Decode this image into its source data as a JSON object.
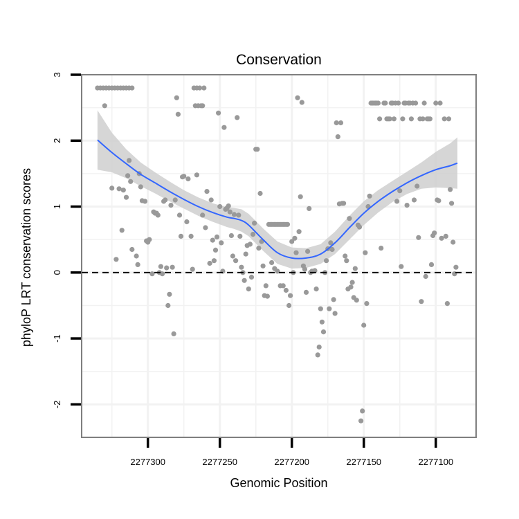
{
  "chart_data": {
    "type": "scatter",
    "title": "Conservation",
    "xlabel": "Genomic Position",
    "ylabel": "phyloP LRT conservation scores",
    "x_reversed": true,
    "xlim": [
      2277346,
      2277072
    ],
    "ylim": [
      -2.5,
      3.0
    ],
    "x_ticks": [
      2277300,
      2277250,
      2277200,
      2277150,
      2277100
    ],
    "x_tick_labels": [
      "2277300",
      "2277250",
      "2277200",
      "2277150",
      "2277100"
    ],
    "y_ticks": [
      3,
      2,
      1,
      0,
      -1,
      -2
    ],
    "y_tick_labels": [
      "3",
      "2",
      "1",
      "0",
      "-1",
      "-2"
    ],
    "grid": true,
    "reference_line": {
      "y": 0,
      "style": "dashed",
      "color": "#000000"
    },
    "colors": {
      "points": "#999999",
      "smooth_line": "#3366ff",
      "ribbon": "#cccccc",
      "grid": "#f2f2f2",
      "panel_border": "#7f7f7f"
    },
    "series": [
      {
        "type": "points",
        "points": [
          [
            2277335,
            2.8
          ],
          [
            2277333,
            2.8
          ],
          [
            2277331,
            2.8
          ],
          [
            2277329,
            2.8
          ],
          [
            2277327,
            2.8
          ],
          [
            2277325,
            2.8
          ],
          [
            2277323,
            2.8
          ],
          [
            2277321,
            2.8
          ],
          [
            2277319,
            2.8
          ],
          [
            2277317,
            2.8
          ],
          [
            2277315,
            2.8
          ],
          [
            2277313,
            2.8
          ],
          [
            2277311,
            2.8
          ],
          [
            2277330,
            2.53
          ],
          [
            2277325,
            1.28
          ],
          [
            2277322,
            0.2
          ],
          [
            2277320,
            1.27
          ],
          [
            2277318,
            0.64
          ],
          [
            2277317,
            1.25
          ],
          [
            2277315,
            1.14
          ],
          [
            2277314,
            1.47
          ],
          [
            2277313,
            1.7
          ],
          [
            2277312,
            1.38
          ],
          [
            2277311,
            0.35
          ],
          [
            2277308,
            0.25
          ],
          [
            2277307,
            0.12
          ],
          [
            2277306,
            1.5
          ],
          [
            2277305,
            1.3
          ],
          [
            2277304,
            1.09
          ],
          [
            2277302,
            1.08
          ],
          [
            2277301,
            0.48
          ],
          [
            2277300,
            0.46
          ],
          [
            2277299,
            0.5
          ],
          [
            2277297,
            -0.02
          ],
          [
            2277296,
            0.92
          ],
          [
            2277295,
            0.9
          ],
          [
            2277294,
            0.9
          ],
          [
            2277293,
            0.87
          ],
          [
            2277292,
            0.0
          ],
          [
            2277291,
            0.09
          ],
          [
            2277290,
            -0.02
          ],
          [
            2277289,
            1.08
          ],
          [
            2277288,
            1.1
          ],
          [
            2277287,
            0.07
          ],
          [
            2277286,
            -0.5
          ],
          [
            2277285,
            -0.33
          ],
          [
            2277284,
            1.02
          ],
          [
            2277283,
            0.08
          ],
          [
            2277282,
            -0.93
          ],
          [
            2277281,
            1.1
          ],
          [
            2277280,
            2.65
          ],
          [
            2277279,
            2.4
          ],
          [
            2277278,
            0.87
          ],
          [
            2277277,
            0.55
          ],
          [
            2277276,
            1.45
          ],
          [
            2277275,
            1.46
          ],
          [
            2277273,
            0.77
          ],
          [
            2277272,
            1.42
          ],
          [
            2277270,
            0.55
          ],
          [
            2277269,
            0.05
          ],
          [
            2277268,
            2.8
          ],
          [
            2277266,
            2.8
          ],
          [
            2277264,
            2.8
          ],
          [
            2277261,
            2.8
          ],
          [
            2277267,
            2.53
          ],
          [
            2277265,
            2.53
          ],
          [
            2277263,
            2.53
          ],
          [
            2277262,
            2.53
          ],
          [
            2277266,
            1.48
          ],
          [
            2277262,
            0.87
          ],
          [
            2277260,
            0.68
          ],
          [
            2277259,
            1.23
          ],
          [
            2277257,
            0.14
          ],
          [
            2277256,
            1.1
          ],
          [
            2277255,
            0.49
          ],
          [
            2277254,
            0.18
          ],
          [
            2277253,
            0.34
          ],
          [
            2277252,
            0.54
          ],
          [
            2277251,
            2.42
          ],
          [
            2277250,
            1.0
          ],
          [
            2277249,
            0.45
          ],
          [
            2277248,
            0.02
          ],
          [
            2277247,
            2.2
          ],
          [
            2277246,
            0.96
          ],
          [
            2277245,
            0.98
          ],
          [
            2277244,
            1.01
          ],
          [
            2277243,
            0.92
          ],
          [
            2277242,
            0.56
          ],
          [
            2277241,
            0.25
          ],
          [
            2277240,
            0.88
          ],
          [
            2277239,
            0.18
          ],
          [
            2277238,
            2.35
          ],
          [
            2277237,
            0.87
          ],
          [
            2277236,
            0.55
          ],
          [
            2277235,
            0.08
          ],
          [
            2277234,
            0.0
          ],
          [
            2277233,
            -0.12
          ],
          [
            2277232,
            0.28
          ],
          [
            2277231,
            0.41
          ],
          [
            2277230,
            -0.25
          ],
          [
            2277229,
            0.43
          ],
          [
            2277228,
            -0.07
          ],
          [
            2277227,
            0.58
          ],
          [
            2277226,
            0.75
          ],
          [
            2277225,
            1.87
          ],
          [
            2277224,
            1.87
          ],
          [
            2277223,
            0.37
          ],
          [
            2277222,
            1.2
          ],
          [
            2277221,
            0.47
          ],
          [
            2277220,
            0.1
          ],
          [
            2277219,
            -0.35
          ],
          [
            2277218,
            -0.2
          ],
          [
            2277217,
            -0.36
          ],
          [
            2277216,
            0.73
          ],
          [
            2277215,
            0.73
          ],
          [
            2277214,
            0.73
          ],
          [
            2277213,
            0.73
          ],
          [
            2277212,
            0.73
          ],
          [
            2277211,
            0.73
          ],
          [
            2277210,
            0.73
          ],
          [
            2277209,
            0.73
          ],
          [
            2277208,
            0.73
          ],
          [
            2277207,
            0.73
          ],
          [
            2277206,
            0.73
          ],
          [
            2277205,
            0.73
          ],
          [
            2277204,
            0.73
          ],
          [
            2277203,
            0.73
          ],
          [
            2277214,
            0.15
          ],
          [
            2277212,
            0.06
          ],
          [
            2277210,
            0.02
          ],
          [
            2277208,
            -0.2
          ],
          [
            2277206,
            -0.2
          ],
          [
            2277204,
            -0.27
          ],
          [
            2277202,
            -0.5
          ],
          [
            2277201,
            -0.35
          ],
          [
            2277200,
            0.47
          ],
          [
            2277199,
            0.0
          ],
          [
            2277198,
            0.52
          ],
          [
            2277197,
            0.3
          ],
          [
            2277196,
            2.65
          ],
          [
            2277195,
            0.62
          ],
          [
            2277194,
            1.15
          ],
          [
            2277193,
            2.58
          ],
          [
            2277192,
            0.1
          ],
          [
            2277191,
            0.05
          ],
          [
            2277190,
            -0.3
          ],
          [
            2277189,
            0.32
          ],
          [
            2277188,
            0.97
          ],
          [
            2277187,
            0.0
          ],
          [
            2277186,
            0.02
          ],
          [
            2277185,
            0.02
          ],
          [
            2277184,
            0.03
          ],
          [
            2277183,
            -0.25
          ],
          [
            2277182,
            -1.25
          ],
          [
            2277181,
            -1.13
          ],
          [
            2277180,
            -0.55
          ],
          [
            2277179,
            -0.75
          ],
          [
            2277178,
            -0.9
          ],
          [
            2277177,
            0.0
          ],
          [
            2277176,
            0.18
          ],
          [
            2277175,
            0.36
          ],
          [
            2277174,
            -0.55
          ],
          [
            2277173,
            0.45
          ],
          [
            2277172,
            0.35
          ],
          [
            2277171,
            -0.41
          ],
          [
            2277170,
            -0.62
          ],
          [
            2277169,
            2.27
          ],
          [
            2277168,
            2.06
          ],
          [
            2277167,
            1.04
          ],
          [
            2277166,
            2.27
          ],
          [
            2277165,
            1.05
          ],
          [
            2277164,
            1.05
          ],
          [
            2277163,
            0.25
          ],
          [
            2277162,
            0.18
          ],
          [
            2277161,
            -0.25
          ],
          [
            2277160,
            0.82
          ],
          [
            2277159,
            -0.22
          ],
          [
            2277158,
            -0.15
          ],
          [
            2277157,
            -0.38
          ],
          [
            2277156,
            0.06
          ],
          [
            2277155,
            -0.42
          ],
          [
            2277154,
            0.72
          ],
          [
            2277153,
            0.69
          ],
          [
            2277152,
            -2.25
          ],
          [
            2277151,
            -2.1
          ],
          [
            2277150,
            -0.8
          ],
          [
            2277149,
            0.3
          ],
          [
            2277148,
            -0.47
          ],
          [
            2277147,
            1.0
          ],
          [
            2277146,
            1.16
          ],
          [
            2277145,
            2.57
          ],
          [
            2277144,
            2.57
          ],
          [
            2277143,
            2.57
          ],
          [
            2277142,
            2.57
          ],
          [
            2277141,
            2.57
          ],
          [
            2277140,
            2.57
          ],
          [
            2277139,
            2.33
          ],
          [
            2277138,
            0.37
          ],
          [
            2277136,
            2.57
          ],
          [
            2277135,
            2.57
          ],
          [
            2277134,
            2.33
          ],
          [
            2277133,
            2.33
          ],
          [
            2277132,
            2.33
          ],
          [
            2277131,
            2.57
          ],
          [
            2277130,
            2.57
          ],
          [
            2277129,
            2.33
          ],
          [
            2277128,
            2.57
          ],
          [
            2277127,
            1.08
          ],
          [
            2277126,
            2.57
          ],
          [
            2277125,
            1.24
          ],
          [
            2277124,
            0.09
          ],
          [
            2277123,
            2.33
          ],
          [
            2277122,
            2.57
          ],
          [
            2277121,
            2.57
          ],
          [
            2277120,
            1.02
          ],
          [
            2277119,
            2.57
          ],
          [
            2277118,
            2.57
          ],
          [
            2277117,
            2.33
          ],
          [
            2277116,
            2.57
          ],
          [
            2277115,
            1.1
          ],
          [
            2277114,
            2.57
          ],
          [
            2277113,
            1.31
          ],
          [
            2277112,
            0.53
          ],
          [
            2277111,
            2.33
          ],
          [
            2277110,
            -0.44
          ],
          [
            2277109,
            2.33
          ],
          [
            2277108,
            2.57
          ],
          [
            2277107,
            -0.06
          ],
          [
            2277106,
            2.33
          ],
          [
            2277105,
            2.33
          ],
          [
            2277104,
            2.33
          ],
          [
            2277103,
            0.12
          ],
          [
            2277102,
            0.56
          ],
          [
            2277101,
            0.6
          ],
          [
            2277100,
            2.57
          ],
          [
            2277099,
            1.1
          ],
          [
            2277098,
            1.09
          ],
          [
            2277097,
            2.57
          ],
          [
            2277096,
            0.52
          ],
          [
            2277094,
            2.33
          ],
          [
            2277093,
            0.55
          ],
          [
            2277092,
            -0.47
          ],
          [
            2277091,
            2.33
          ],
          [
            2277090,
            1.26
          ],
          [
            2277089,
            1.05
          ],
          [
            2277088,
            0.46
          ],
          [
            2277087,
            -0.02
          ],
          [
            2277086,
            0.08
          ]
        ]
      },
      {
        "type": "smooth",
        "x": [
          2277335,
          2277325,
          2277315,
          2277305,
          2277295,
          2277285,
          2277275,
          2277265,
          2277255,
          2277245,
          2277240,
          2277235,
          2277230,
          2277220,
          2277210,
          2277200,
          2277190,
          2277180,
          2277170,
          2277160,
          2277150,
          2277140,
          2277130,
          2277120,
          2277110,
          2277100,
          2277090,
          2277085
        ],
        "y": [
          2.01,
          1.82,
          1.65,
          1.49,
          1.36,
          1.23,
          1.11,
          1.0,
          0.91,
          0.84,
          0.82,
          0.79,
          0.72,
          0.5,
          0.3,
          0.22,
          0.22,
          0.28,
          0.45,
          0.68,
          0.9,
          1.08,
          1.23,
          1.36,
          1.47,
          1.56,
          1.62,
          1.66
        ],
        "ci_lower": [
          1.56,
          1.52,
          1.43,
          1.31,
          1.2,
          1.08,
          0.97,
          0.86,
          0.77,
          0.69,
          0.66,
          0.62,
          0.55,
          0.33,
          0.13,
          0.06,
          0.07,
          0.13,
          0.28,
          0.5,
          0.72,
          0.91,
          1.07,
          1.19,
          1.27,
          1.29,
          1.28,
          1.27
        ],
        "ci_upper": [
          2.46,
          2.12,
          1.87,
          1.67,
          1.52,
          1.38,
          1.25,
          1.14,
          1.05,
          0.99,
          0.98,
          0.96,
          0.89,
          0.67,
          0.47,
          0.38,
          0.37,
          0.43,
          0.62,
          0.86,
          1.08,
          1.25,
          1.39,
          1.53,
          1.67,
          1.83,
          1.96,
          2.05
        ]
      }
    ]
  }
}
